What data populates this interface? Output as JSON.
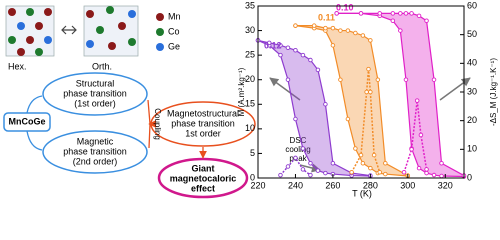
{
  "diagram": {
    "lattice": {
      "hex": "Hex.",
      "orth": "Orth."
    },
    "legend": [
      "Mn",
      "Co",
      "Ge"
    ],
    "structural": [
      "Structural",
      "phase transition",
      "(1st order)"
    ],
    "compound": "MnCoGe",
    "magnetic": [
      "Magnetic",
      "phase transition",
      "(2nd order)"
    ],
    "coupling": "Coupling",
    "magnetostructural": [
      "Magnetostructural",
      "phase transition",
      "1st order"
    ],
    "effect": [
      "Giant",
      "magnetocaloric",
      "effect"
    ]
  },
  "chart_data": {
    "type": "line",
    "xlabel": "T (K)",
    "ylabel": "M (A.m².kg⁻¹)",
    "y2label": "-ΔS_M (J.kg⁻¹.K⁻¹)",
    "annotation": [
      "DSC",
      "cooling",
      "peak"
    ],
    "xlim": [
      220,
      330
    ],
    "xticks": [
      220,
      240,
      260,
      280,
      300,
      320
    ],
    "ylim": [
      0,
      35
    ],
    "yticks": [
      0,
      5,
      10,
      15,
      20,
      25,
      30,
      35
    ],
    "y2lim": [
      0,
      60
    ],
    "y2ticks": [
      0,
      10,
      20,
      30,
      40,
      50,
      60
    ],
    "series": [
      {
        "name": "0.12",
        "color": "#8e3ccf",
        "x": [
          220,
          226,
          232,
          236,
          240,
          244,
          248,
          252,
          256,
          260,
          270,
          280
        ],
        "values": [
          28,
          27,
          25,
          20,
          12,
          6,
          3,
          1.5,
          1,
          0.8,
          0.5,
          0.4
        ],
        "values_heating": [
          28,
          27.5,
          27,
          26.5,
          26,
          25,
          24,
          22,
          15,
          3,
          1,
          0.5
        ]
      },
      {
        "name": "0.11",
        "color": "#f28c28",
        "x": [
          240,
          250,
          256,
          260,
          264,
          268,
          272,
          276,
          280,
          284,
          288,
          300
        ],
        "values": [
          31,
          30.5,
          30,
          27,
          20,
          12,
          6,
          3,
          2,
          1,
          0.8,
          0.4
        ],
        "values_heating": [
          31,
          31,
          30.5,
          30.5,
          30,
          30,
          29.5,
          29,
          28,
          20,
          3,
          0.5
        ]
      },
      {
        "name": "0.10",
        "color": "#e020c8",
        "x": [
          262,
          275,
          285,
          292,
          296,
          299,
          302,
          306,
          310,
          314,
          318,
          330
        ],
        "values": [
          33.5,
          33.5,
          33,
          32,
          30,
          20,
          6,
          2,
          1,
          0.6,
          0.4,
          0.3
        ],
        "values_heating": [
          33.5,
          33.5,
          33.5,
          33.5,
          33.5,
          33.5,
          33.5,
          33,
          32,
          20,
          3,
          0.5
        ]
      },
      {
        "color": "#8e3ccf",
        "axis": "y2",
        "x": [
          232,
          236,
          240,
          244,
          248
        ],
        "values": [
          1,
          4,
          7,
          3,
          1
        ]
      },
      {
        "color": "#f28c28",
        "axis": "y2",
        "x": [
          270,
          275,
          278,
          279,
          280,
          282,
          285
        ],
        "values": [
          2,
          8,
          30,
          38,
          30,
          8,
          2
        ]
      },
      {
        "color": "#e020c8",
        "axis": "y2",
        "x": [
          298,
          302,
          305,
          307,
          310
        ],
        "values": [
          2,
          10,
          27,
          15,
          3
        ]
      }
    ]
  }
}
